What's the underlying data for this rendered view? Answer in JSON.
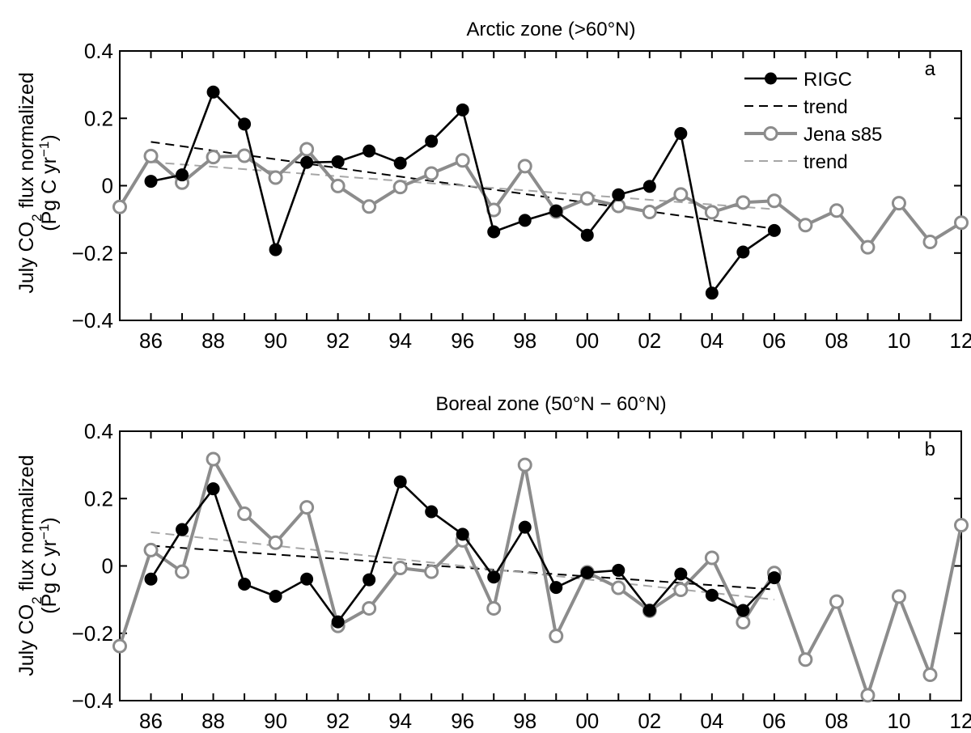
{
  "chart_data": [
    {
      "type": "line",
      "panel_label": "a",
      "title": "Arctic zone (>60°N)",
      "ylabel_line1_pre": "July CO",
      "ylabel_line1_sub": "2",
      "ylabel_line1_post": " flux normalized",
      "ylabel_line2_pre": "(Pg C yr",
      "ylabel_line2_sup": "−1",
      "ylabel_line2_post": ")",
      "ylim": [
        -0.4,
        0.4
      ],
      "xlim": [
        1985,
        2012
      ],
      "yticks": [
        {
          "value": 0.4,
          "label": "0.4"
        },
        {
          "value": 0.2,
          "label": "0.2"
        },
        {
          "value": 0,
          "label": "0"
        },
        {
          "value": -0.2,
          "label": "−0.2"
        },
        {
          "value": -0.4,
          "label": "−0.4"
        }
      ],
      "xticks": [
        {
          "value": 1986,
          "label": "86"
        },
        {
          "value": 1988,
          "label": "88"
        },
        {
          "value": 1990,
          "label": "90"
        },
        {
          "value": 1992,
          "label": "92"
        },
        {
          "value": 1994,
          "label": "94"
        },
        {
          "value": 1996,
          "label": "96"
        },
        {
          "value": 1998,
          "label": "98"
        },
        {
          "value": 2000,
          "label": "00"
        },
        {
          "value": 2002,
          "label": "02"
        },
        {
          "value": 2004,
          "label": "04"
        },
        {
          "value": 2006,
          "label": "06"
        },
        {
          "value": 2008,
          "label": "08"
        },
        {
          "value": 2010,
          "label": "10"
        },
        {
          "value": 2012,
          "label": "12"
        }
      ],
      "legend": {
        "placement": "top-right",
        "entries": [
          {
            "label": "RIGC",
            "style": "line-filled"
          },
          {
            "label": "trend",
            "style": "dash-dark"
          },
          {
            "label": "Jena s85",
            "style": "line-open"
          },
          {
            "label": "trend",
            "style": "dash-light"
          }
        ]
      },
      "series": [
        {
          "name": "RIGC",
          "color": "#000000",
          "marker": "filled",
          "x": [
            1986,
            1987,
            1988,
            1989,
            1990,
            1991,
            1992,
            1993,
            1994,
            1995,
            1996,
            1997,
            1998,
            1999,
            2000,
            2001,
            2002,
            2003,
            2004,
            2005,
            2006
          ],
          "y": [
            0.013,
            0.032,
            0.278,
            0.183,
            -0.19,
            0.069,
            0.071,
            0.103,
            0.067,
            0.132,
            0.225,
            -0.137,
            -0.103,
            -0.075,
            -0.147,
            -0.027,
            -0.002,
            0.155,
            -0.319,
            -0.197,
            -0.133
          ]
        },
        {
          "name": "Jena s85",
          "color": "#8c8c8c",
          "marker": "open",
          "x": [
            1985,
            1986,
            1987,
            1988,
            1989,
            1990,
            1991,
            1992,
            1993,
            1994,
            1995,
            1996,
            1997,
            1998,
            1999,
            2000,
            2001,
            2002,
            2003,
            2004,
            2005,
            2006,
            2007,
            2008,
            2009,
            2010,
            2011,
            2012
          ],
          "y": [
            -0.063,
            0.088,
            0.009,
            0.085,
            0.089,
            0.024,
            0.108,
            -0.001,
            -0.062,
            -0.004,
            0.036,
            0.075,
            -0.072,
            0.058,
            -0.077,
            -0.038,
            -0.06,
            -0.078,
            -0.026,
            -0.079,
            -0.05,
            -0.045,
            -0.117,
            -0.074,
            -0.183,
            -0.052,
            -0.167,
            -0.11
          ]
        }
      ],
      "trends": [
        {
          "color": "#000000",
          "x": [
            1986,
            2006
          ],
          "y": [
            0.13,
            -0.128
          ]
        },
        {
          "color": "#a6a6a6",
          "x": [
            1986,
            2006
          ],
          "y": [
            0.07,
            -0.07
          ]
        }
      ]
    },
    {
      "type": "line",
      "panel_label": "b",
      "title": "Boreal zone (50°N − 60°N)",
      "ylabel_line1_pre": "July CO",
      "ylabel_line1_sub": "2",
      "ylabel_line1_post": " flux normalized",
      "ylabel_line2_pre": "(Pg C yr",
      "ylabel_line2_sup": "−1",
      "ylabel_line2_post": ")",
      "ylim": [
        -0.4,
        0.4
      ],
      "xlim": [
        1985,
        2012
      ],
      "yticks": [
        {
          "value": 0.4,
          "label": "0.4"
        },
        {
          "value": 0.2,
          "label": "0.2"
        },
        {
          "value": 0,
          "label": "0"
        },
        {
          "value": -0.2,
          "label": "−0.2"
        },
        {
          "value": -0.4,
          "label": "−0.4"
        }
      ],
      "xticks": [
        {
          "value": 1986,
          "label": "86"
        },
        {
          "value": 1988,
          "label": "88"
        },
        {
          "value": 1990,
          "label": "90"
        },
        {
          "value": 1992,
          "label": "92"
        },
        {
          "value": 1994,
          "label": "94"
        },
        {
          "value": 1996,
          "label": "96"
        },
        {
          "value": 1998,
          "label": "98"
        },
        {
          "value": 2000,
          "label": "00"
        },
        {
          "value": 2002,
          "label": "02"
        },
        {
          "value": 2004,
          "label": "04"
        },
        {
          "value": 2006,
          "label": "06"
        },
        {
          "value": 2008,
          "label": "08"
        },
        {
          "value": 2010,
          "label": "10"
        },
        {
          "value": 2012,
          "label": "12"
        }
      ],
      "series": [
        {
          "name": "RIGC",
          "color": "#000000",
          "marker": "filled",
          "x": [
            1986,
            1987,
            1988,
            1989,
            1990,
            1991,
            1992,
            1993,
            1994,
            1995,
            1996,
            1997,
            1998,
            1999,
            2000,
            2001,
            2002,
            2003,
            2004,
            2005,
            2006
          ],
          "y": [
            -0.039,
            0.108,
            0.229,
            -0.054,
            -0.09,
            -0.039,
            -0.166,
            -0.041,
            0.25,
            0.161,
            0.094,
            -0.033,
            0.115,
            -0.064,
            -0.02,
            -0.013,
            -0.132,
            -0.024,
            -0.087,
            -0.132,
            -0.035
          ]
        },
        {
          "name": "Jena s85",
          "color": "#8c8c8c",
          "marker": "open",
          "x": [
            1985,
            1986,
            1987,
            1988,
            1989,
            1990,
            1991,
            1992,
            1993,
            1994,
            1995,
            1996,
            1997,
            1998,
            1999,
            2000,
            2001,
            2002,
            2003,
            2004,
            2005,
            2006,
            2007,
            2008,
            2009,
            2010,
            2011,
            2012
          ],
          "y": [
            -0.238,
            0.047,
            -0.017,
            0.317,
            0.155,
            0.069,
            0.174,
            -0.178,
            -0.126,
            -0.006,
            -0.017,
            0.076,
            -0.126,
            0.3,
            -0.208,
            -0.019,
            -0.065,
            -0.133,
            -0.071,
            0.024,
            -0.167,
            -0.021,
            -0.278,
            -0.106,
            -0.384,
            -0.091,
            -0.323,
            0.121
          ]
        }
      ],
      "trends": [
        {
          "color": "#000000",
          "x": [
            1986,
            2006
          ],
          "y": [
            0.06,
            -0.07
          ]
        },
        {
          "color": "#a6a6a6",
          "x": [
            1986,
            2006
          ],
          "y": [
            0.1,
            -0.1
          ]
        }
      ]
    }
  ]
}
